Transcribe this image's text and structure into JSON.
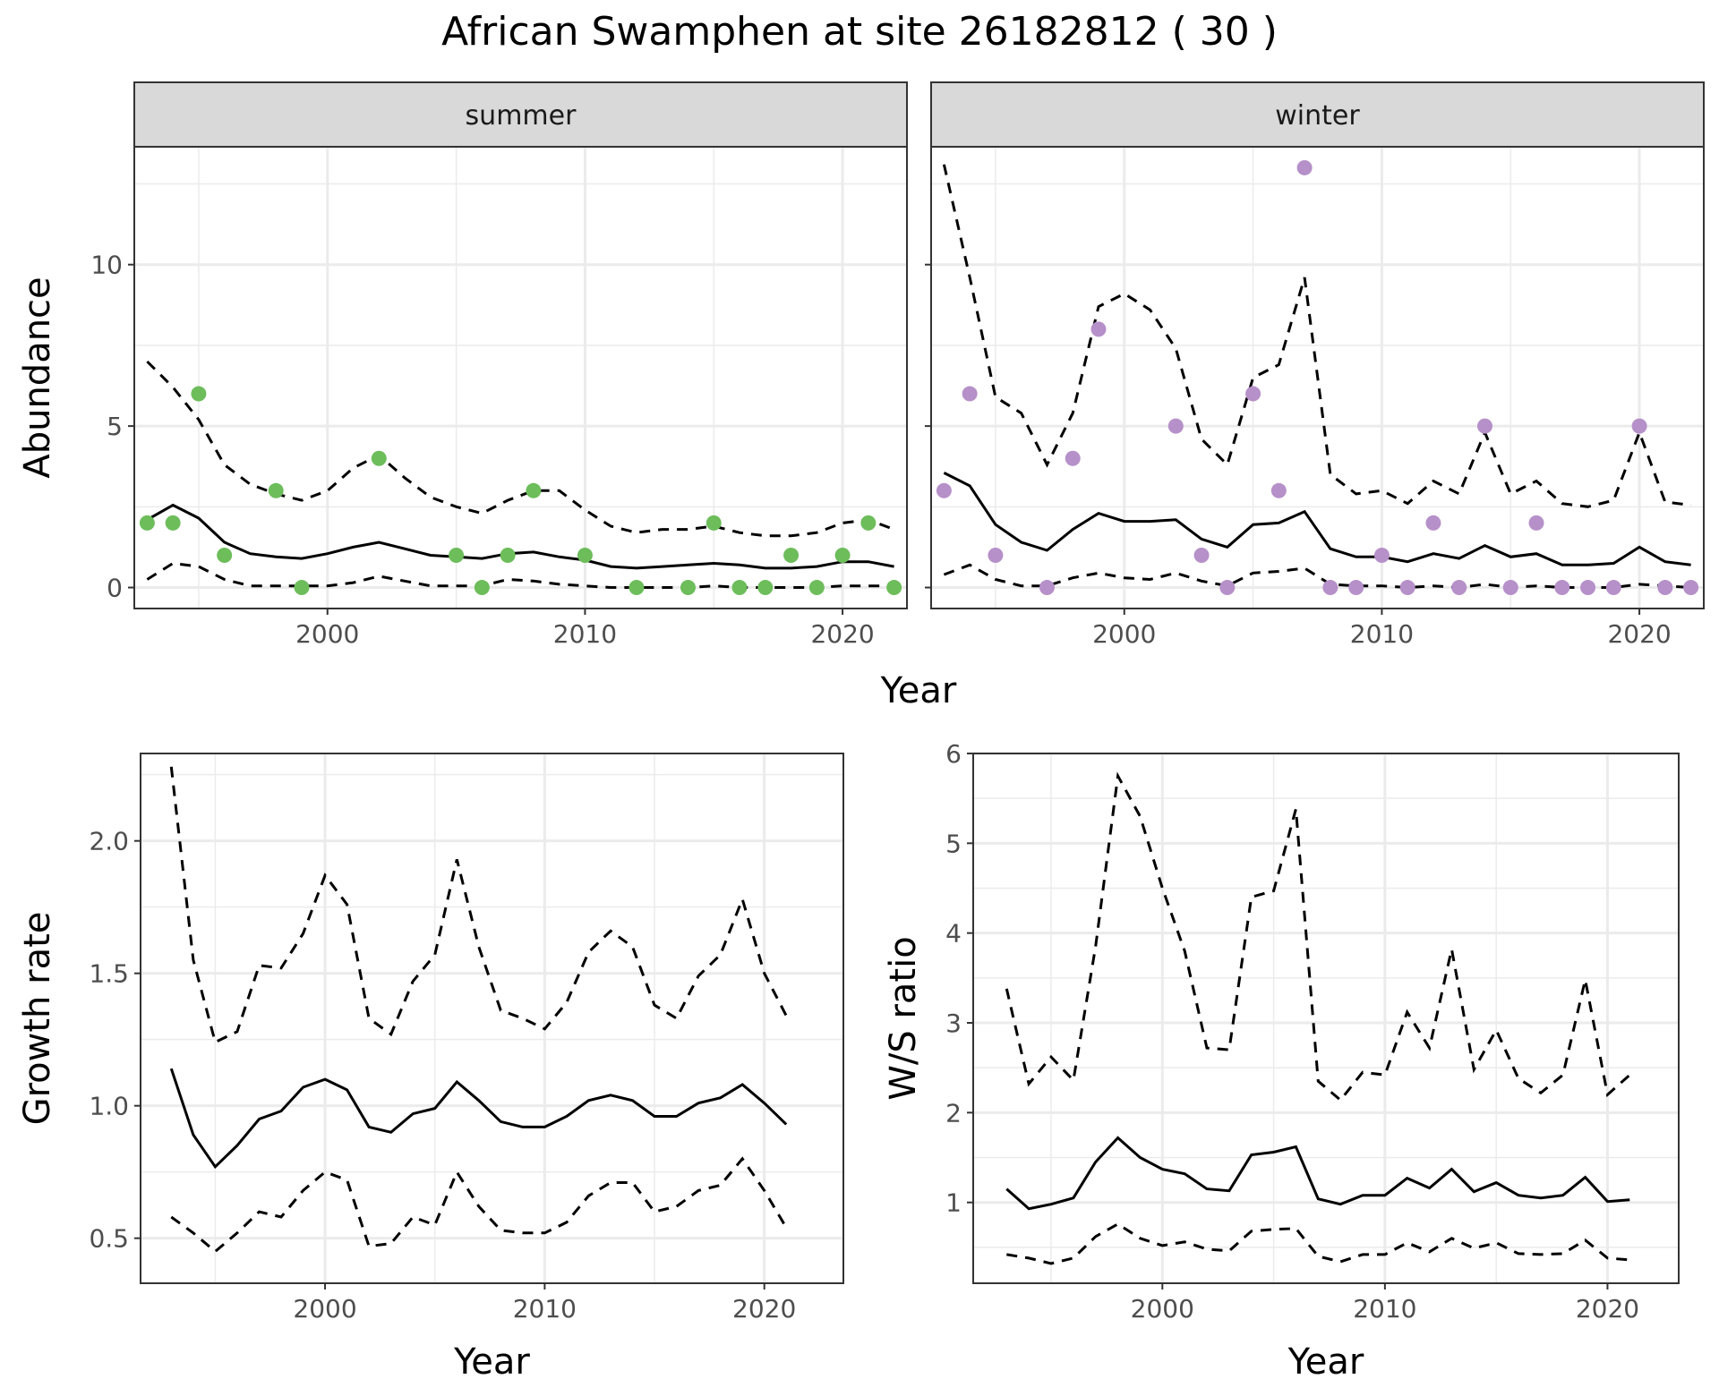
{
  "title": "African Swamphen at site 26182812 ( 30 )",
  "colors": {
    "summer": "#6dbd5b",
    "winter": "#b690c9",
    "line": "#000000",
    "grid": "#ebebeb",
    "strip": "#d9d9d9"
  },
  "chart_data": [
    {
      "id": "abundance",
      "type": "scatter",
      "facets": [
        "summer",
        "winter"
      ],
      "xlabel": "Year",
      "ylabel": "Abundance",
      "xlim": [
        1992.5,
        2022.5
      ],
      "ylim": [
        -0.65,
        13.65
      ],
      "xticks": [
        2000,
        2010,
        2020
      ],
      "yticks": [
        0,
        5,
        10
      ],
      "panels": [
        {
          "facet": "summer",
          "points": {
            "x": [
              1993,
              1994,
              1995,
              1996,
              1998,
              1999,
              2002,
              2005,
              2006,
              2007,
              2008,
              2010,
              2012,
              2014,
              2015,
              2016,
              2017,
              2018,
              2019,
              2020,
              2021,
              2022
            ],
            "y": [
              2,
              2,
              6,
              1,
              3,
              0,
              4,
              1,
              0,
              1,
              3,
              1,
              0,
              0,
              2,
              0,
              0,
              1,
              0,
              1,
              2,
              0
            ]
          },
          "x": [
            1993,
            1994,
            1995,
            1996,
            1997,
            1998,
            1999,
            2000,
            2001,
            2002,
            2003,
            2004,
            2005,
            2006,
            2007,
            2008,
            2009,
            2010,
            2011,
            2012,
            2013,
            2014,
            2015,
            2016,
            2017,
            2018,
            2019,
            2020,
            2021,
            2022
          ],
          "mean": [
            2.1,
            2.55,
            2.15,
            1.4,
            1.05,
            0.95,
            0.9,
            1.05,
            1.25,
            1.4,
            1.2,
            1.0,
            0.95,
            0.9,
            1.05,
            1.1,
            0.95,
            0.85,
            0.65,
            0.6,
            0.65,
            0.7,
            0.75,
            0.7,
            0.6,
            0.6,
            0.65,
            0.8,
            0.8,
            0.65
          ],
          "lower": [
            0.25,
            0.75,
            0.65,
            0.25,
            0.05,
            0.05,
            0.05,
            0.05,
            0.15,
            0.35,
            0.2,
            0.05,
            0.05,
            0.05,
            0.25,
            0.2,
            0.1,
            0.05,
            0.0,
            0.0,
            0.0,
            0.0,
            0.05,
            0.0,
            0.0,
            0.0,
            0.0,
            0.05,
            0.05,
            0.05
          ],
          "upper": [
            7.0,
            6.2,
            5.2,
            3.8,
            3.2,
            2.9,
            2.7,
            3.0,
            3.7,
            4.1,
            3.4,
            2.8,
            2.5,
            2.3,
            2.7,
            3.0,
            3.0,
            2.4,
            1.9,
            1.7,
            1.8,
            1.8,
            1.9,
            1.7,
            1.6,
            1.6,
            1.7,
            2.0,
            2.1,
            1.8
          ]
        },
        {
          "facet": "winter",
          "points": {
            "x": [
              1993,
              1994,
              1995,
              1997,
              1998,
              1999,
              2002,
              2003,
              2004,
              2005,
              2006,
              2007,
              2008,
              2009,
              2010,
              2011,
              2012,
              2013,
              2014,
              2015,
              2016,
              2017,
              2018,
              2019,
              2020,
              2021,
              2022
            ],
            "y": [
              3,
              6,
              1,
              0,
              4,
              8,
              5,
              1,
              0,
              6,
              3,
              13,
              0,
              0,
              1,
              0,
              2,
              0,
              5,
              0,
              2,
              0,
              0,
              0,
              5,
              0,
              0
            ]
          },
          "x": [
            1993,
            1994,
            1995,
            1996,
            1997,
            1998,
            1999,
            2000,
            2001,
            2002,
            2003,
            2004,
            2005,
            2006,
            2007,
            2008,
            2009,
            2010,
            2011,
            2012,
            2013,
            2014,
            2015,
            2016,
            2017,
            2018,
            2019,
            2020,
            2021,
            2022
          ],
          "mean": [
            3.55,
            3.15,
            1.95,
            1.4,
            1.15,
            1.8,
            2.3,
            2.05,
            2.05,
            2.1,
            1.5,
            1.25,
            1.95,
            2.0,
            2.35,
            1.2,
            0.95,
            0.95,
            0.8,
            1.05,
            0.9,
            1.3,
            0.95,
            1.05,
            0.7,
            0.7,
            0.75,
            1.25,
            0.8,
            0.7
          ],
          "lower": [
            0.4,
            0.7,
            0.25,
            0.05,
            0.05,
            0.3,
            0.45,
            0.3,
            0.25,
            0.45,
            0.2,
            0.05,
            0.45,
            0.5,
            0.6,
            0.1,
            0.05,
            0.05,
            0.0,
            0.05,
            0.0,
            0.1,
            0.0,
            0.05,
            0.0,
            0.0,
            0.0,
            0.1,
            0.05,
            0.0
          ],
          "upper": [
            13.1,
            9.6,
            5.9,
            5.4,
            3.8,
            5.4,
            8.7,
            9.1,
            8.6,
            7.4,
            4.6,
            3.8,
            6.5,
            6.9,
            9.6,
            3.5,
            2.9,
            3.0,
            2.6,
            3.3,
            2.9,
            4.8,
            2.9,
            3.3,
            2.6,
            2.5,
            2.7,
            4.8,
            2.65,
            2.55
          ]
        }
      ]
    },
    {
      "id": "growth",
      "type": "line",
      "xlabel": "Year",
      "ylabel": "Growth rate",
      "xlim": [
        1991.6,
        2023.6
      ],
      "ylim": [
        0.33,
        2.33
      ],
      "xticks": [
        2000,
        2010,
        2020
      ],
      "yticks": [
        0.5,
        1.0,
        1.5,
        2.0
      ],
      "ytick_labels": [
        "0.5",
        "1.0",
        "1.5",
        "2.0"
      ],
      "x": [
        1993,
        1994,
        1995,
        1996,
        1997,
        1998,
        1999,
        2000,
        2001,
        2002,
        2003,
        2004,
        2005,
        2006,
        2007,
        2008,
        2009,
        2010,
        2011,
        2012,
        2013,
        2014,
        2015,
        2016,
        2017,
        2018,
        2019,
        2020,
        2021
      ],
      "mean": [
        1.14,
        0.89,
        0.77,
        0.85,
        0.95,
        0.98,
        1.07,
        1.1,
        1.06,
        0.92,
        0.9,
        0.97,
        0.99,
        1.09,
        1.02,
        0.94,
        0.92,
        0.92,
        0.96,
        1.02,
        1.04,
        1.02,
        0.96,
        0.96,
        1.01,
        1.03,
        1.08,
        1.01,
        0.93
      ],
      "lower": [
        0.58,
        0.52,
        0.45,
        0.52,
        0.6,
        0.58,
        0.68,
        0.75,
        0.72,
        0.47,
        0.48,
        0.58,
        0.55,
        0.75,
        0.62,
        0.53,
        0.52,
        0.52,
        0.56,
        0.66,
        0.71,
        0.71,
        0.6,
        0.62,
        0.68,
        0.7,
        0.8,
        0.68,
        0.54
      ],
      "upper": [
        2.28,
        1.55,
        1.24,
        1.28,
        1.53,
        1.52,
        1.65,
        1.87,
        1.76,
        1.33,
        1.27,
        1.47,
        1.57,
        1.93,
        1.6,
        1.36,
        1.33,
        1.29,
        1.39,
        1.58,
        1.66,
        1.6,
        1.38,
        1.33,
        1.49,
        1.57,
        1.78,
        1.5,
        1.34
      ]
    },
    {
      "id": "ws_ratio",
      "type": "line",
      "xlabel": "Year",
      "ylabel": "W/S ratio",
      "xlim": [
        1991.5,
        2023.2
      ],
      "ylim": [
        0.1,
        6.0
      ],
      "xticks": [
        2000,
        2010,
        2020
      ],
      "yticks": [
        1,
        2,
        3,
        4,
        5,
        6
      ],
      "x": [
        1993,
        1994,
        1995,
        1996,
        1997,
        1998,
        1999,
        2000,
        2001,
        2002,
        2003,
        2004,
        2005,
        2006,
        2007,
        2008,
        2009,
        2010,
        2011,
        2012,
        2013,
        2014,
        2015,
        2016,
        2017,
        2018,
        2019,
        2020,
        2021
      ],
      "mean": [
        1.15,
        0.93,
        0.98,
        1.05,
        1.45,
        1.72,
        1.5,
        1.37,
        1.32,
        1.15,
        1.13,
        1.53,
        1.56,
        1.62,
        1.04,
        0.98,
        1.08,
        1.08,
        1.27,
        1.16,
        1.37,
        1.12,
        1.22,
        1.08,
        1.05,
        1.08,
        1.28,
        1.01,
        1.03
      ],
      "lower": [
        0.42,
        0.38,
        0.32,
        0.38,
        0.62,
        0.76,
        0.6,
        0.52,
        0.56,
        0.48,
        0.46,
        0.68,
        0.7,
        0.71,
        0.4,
        0.34,
        0.42,
        0.42,
        0.55,
        0.45,
        0.6,
        0.49,
        0.55,
        0.43,
        0.42,
        0.43,
        0.58,
        0.38,
        0.36
      ],
      "upper": [
        3.38,
        2.32,
        2.62,
        2.36,
        3.85,
        5.75,
        5.3,
        4.5,
        3.8,
        2.72,
        2.7,
        4.4,
        4.47,
        5.38,
        2.35,
        2.14,
        2.45,
        2.42,
        3.12,
        2.72,
        3.82,
        2.48,
        2.92,
        2.38,
        2.22,
        2.42,
        3.48,
        2.2,
        2.42
      ]
    }
  ]
}
